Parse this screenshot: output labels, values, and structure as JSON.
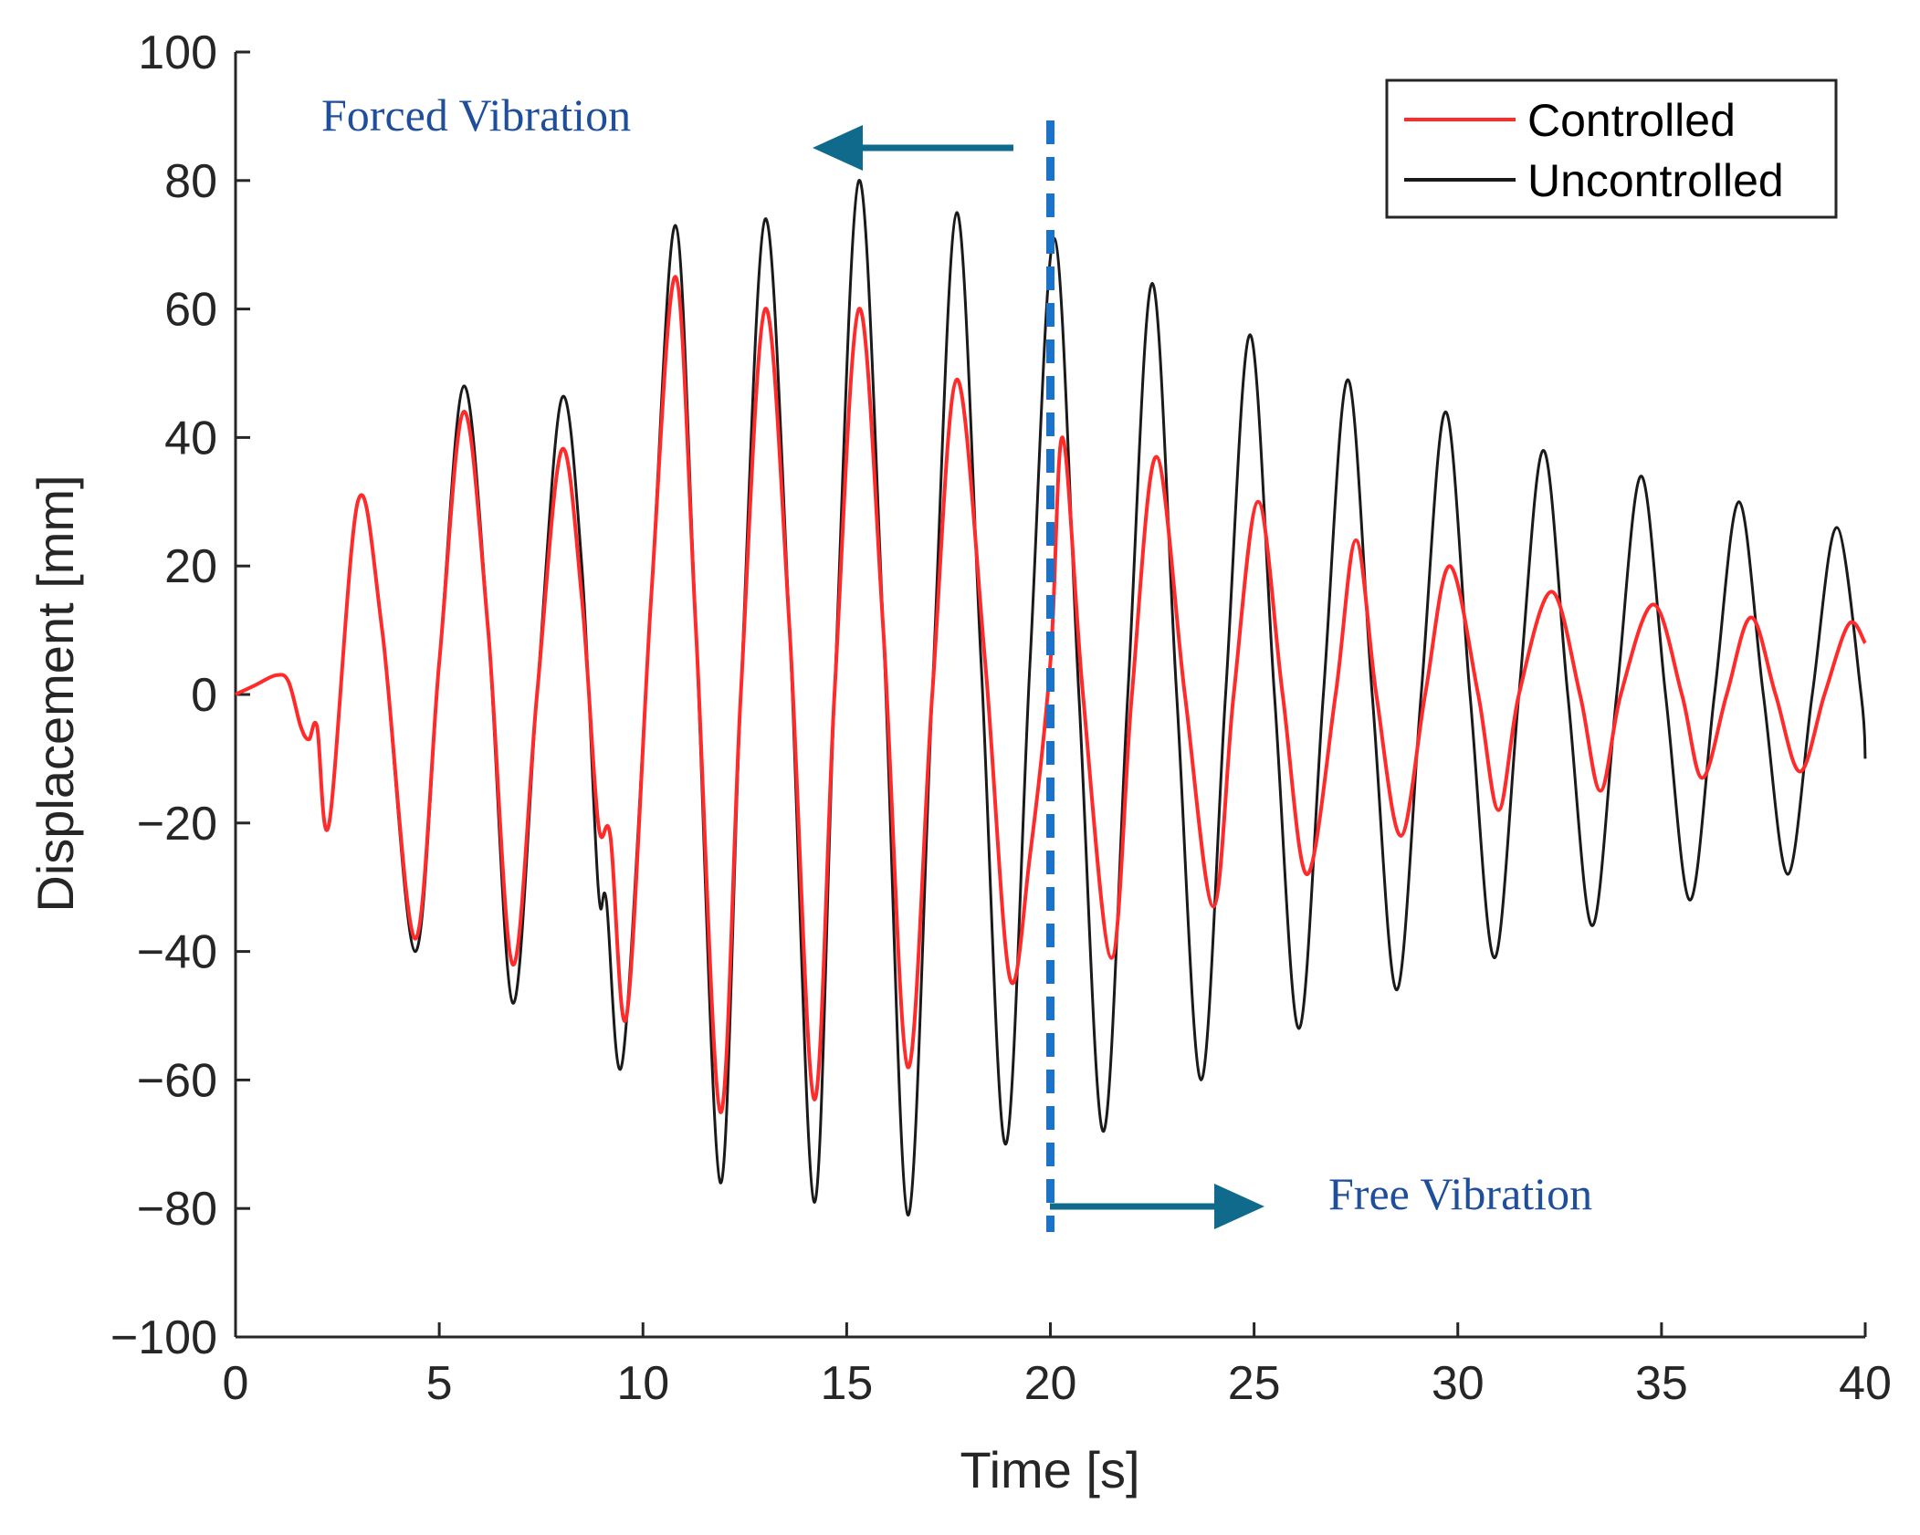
{
  "chart_data": {
    "type": "line",
    "title": "",
    "xlabel": "Time [s]",
    "ylabel": "Displacement [mm]",
    "xlim": [
      0,
      40
    ],
    "ylim": [
      -100,
      100
    ],
    "xticks": [
      0,
      5,
      10,
      15,
      20,
      25,
      30,
      35,
      40
    ],
    "yticks": [
      -100,
      -80,
      -60,
      -40,
      -20,
      0,
      20,
      40,
      60,
      80,
      100
    ],
    "xtick_labels": [
      "0",
      "5",
      "10",
      "15",
      "20",
      "25",
      "30",
      "35",
      "40"
    ],
    "ytick_labels": [
      "−100",
      "−80",
      "−60",
      "−40",
      "−20",
      "0",
      "20",
      "40",
      "60",
      "80",
      "100"
    ],
    "grid": false,
    "legend_position": "top-right",
    "series": [
      {
        "name": "Controlled",
        "color": "#ff2a2a",
        "x": [
          0,
          0.5,
          1.0,
          1.3,
          1.6,
          1.8,
          2.0,
          2.3,
          3.0,
          3.6,
          4.4,
          5.0,
          5.6,
          6.2,
          6.8,
          7.4,
          8.0,
          8.5,
          8.9,
          9.2,
          9.6,
          10.2,
          10.8,
          11.3,
          11.9,
          12.4,
          13.0,
          13.6,
          14.2,
          14.7,
          15.3,
          15.9,
          16.5,
          17.1,
          17.7,
          18.4,
          19.0,
          19.5,
          20.0,
          20.3,
          20.8,
          21.5,
          22.0,
          22.6,
          23.3,
          24.0,
          24.5,
          25.1,
          25.7,
          26.3,
          27.0,
          27.5,
          28.0,
          28.6,
          29.2,
          29.8,
          30.5,
          31.0,
          31.5,
          32.3,
          33.0,
          33.5,
          34.0,
          34.8,
          35.5,
          36.0,
          36.6,
          37.2,
          37.8,
          38.4,
          39.0,
          39.6,
          40.0
        ],
        "y": [
          0,
          1.5,
          3,
          2,
          -5,
          -7,
          -5,
          -20,
          30,
          10,
          -38,
          5,
          44,
          10,
          -42,
          0,
          38,
          15,
          -20,
          -22,
          -50,
          15,
          65,
          10,
          -65,
          0,
          60,
          10,
          -63,
          0,
          60,
          10,
          -58,
          0,
          49,
          5,
          -44,
          -25,
          5,
          40,
          0,
          -41,
          0,
          37,
          0,
          -33,
          0,
          30,
          0,
          -28,
          0,
          24,
          0,
          -22,
          0,
          20,
          0,
          -18,
          0,
          16,
          0,
          -15,
          0,
          14,
          0,
          -13,
          0,
          12,
          0,
          -12,
          0,
          11,
          8
        ]
      },
      {
        "name": "Uncontrolled",
        "color": "#1a1a1a",
        "x": [
          0,
          0.5,
          1.0,
          1.3,
          1.6,
          1.8,
          2.0,
          2.3,
          3.0,
          3.6,
          4.4,
          5.0,
          5.6,
          6.2,
          6.8,
          7.4,
          8.0,
          8.5,
          8.9,
          9.1,
          9.5,
          10.2,
          10.8,
          11.3,
          11.9,
          12.4,
          13.0,
          13.6,
          14.2,
          14.7,
          15.3,
          15.9,
          16.5,
          17.1,
          17.7,
          18.3,
          18.9,
          19.5,
          20.1,
          20.7,
          21.3,
          21.9,
          22.5,
          23.1,
          23.7,
          24.3,
          24.9,
          25.5,
          26.1,
          26.7,
          27.3,
          27.9,
          28.5,
          29.1,
          29.7,
          30.3,
          30.9,
          31.5,
          32.1,
          32.7,
          33.3,
          33.9,
          34.5,
          35.1,
          35.7,
          36.3,
          36.9,
          37.5,
          38.1,
          38.7,
          39.3,
          39.9,
          40.0
        ],
        "y": [
          0,
          1.5,
          3,
          2,
          -5,
          -7,
          -5,
          -20,
          30,
          10,
          -40,
          5,
          48,
          10,
          -48,
          0,
          46,
          20,
          -30,
          -32,
          -57,
          15,
          73,
          10,
          -76,
          0,
          74,
          10,
          -79,
          0,
          80,
          10,
          -81,
          0,
          75,
          5,
          -70,
          5,
          71,
          0,
          -68,
          0,
          64,
          0,
          -60,
          0,
          56,
          0,
          -52,
          0,
          49,
          0,
          -46,
          0,
          44,
          0,
          -41,
          0,
          38,
          0,
          -36,
          0,
          34,
          0,
          -32,
          0,
          30,
          0,
          -28,
          0,
          26,
          0,
          -10
        ]
      }
    ],
    "annotations": [
      {
        "text": "Forced Vibration",
        "color": "#1f4e9a",
        "arrow_direction": "left"
      },
      {
        "text": "Free Vibration",
        "color": "#1f4e9a",
        "arrow_direction": "right"
      }
    ],
    "divider": {
      "x": 20,
      "color": "#1a73c9",
      "style": "dashed"
    },
    "arrow_color": "#0f6a8c"
  }
}
